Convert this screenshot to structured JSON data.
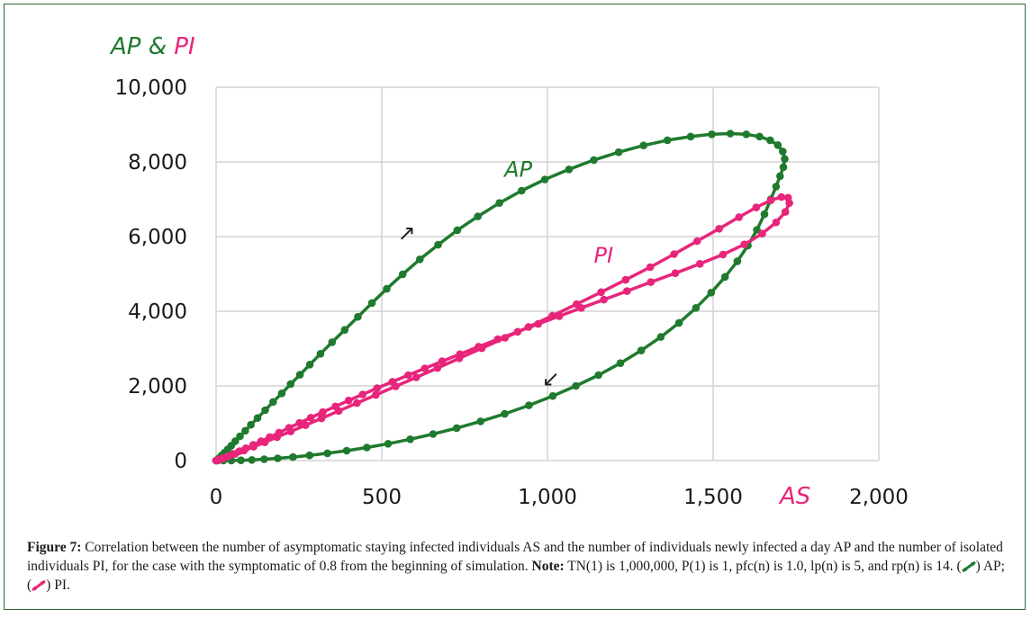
{
  "chart_data": {
    "type": "scatter",
    "title": "",
    "y_axis_title": {
      "parts": [
        {
          "text": "AP",
          "color": "#1f7a2e"
        },
        {
          "text": " & ",
          "color": "#1f7a2e"
        },
        {
          "text": "PI",
          "color": "#e8257a"
        }
      ]
    },
    "x_axis_title": {
      "text": "AS",
      "color": "#e8257a"
    },
    "xlim": [
      0,
      2000
    ],
    "ylim": [
      0,
      10000
    ],
    "x_ticks": [
      {
        "value": 0,
        "label": "0"
      },
      {
        "value": 500,
        "label": "500"
      },
      {
        "value": 1000,
        "label": "1,000"
      },
      {
        "value": 1500,
        "label": "1,500"
      },
      {
        "value": 2000,
        "label": "2,000"
      }
    ],
    "y_ticks": [
      {
        "value": 0,
        "label": "0"
      },
      {
        "value": 2000,
        "label": "2,000"
      },
      {
        "value": 4000,
        "label": "4,000"
      },
      {
        "value": 6000,
        "label": "6,000"
      },
      {
        "value": 8000,
        "label": "8,000"
      },
      {
        "value": 10000,
        "label": "10,000"
      }
    ],
    "grid": true,
    "series": [
      {
        "name": "AP",
        "color": "#1f7a2e",
        "points": [
          [
            0,
            0
          ],
          [
            8,
            60
          ],
          [
            16,
            130
          ],
          [
            25,
            210
          ],
          [
            35,
            300
          ],
          [
            46,
            400
          ],
          [
            58,
            520
          ],
          [
            72,
            650
          ],
          [
            88,
            800
          ],
          [
            105,
            960
          ],
          [
            125,
            1140
          ],
          [
            148,
            1350
          ],
          [
            172,
            1570
          ],
          [
            198,
            1800
          ],
          [
            225,
            2050
          ],
          [
            253,
            2300
          ],
          [
            283,
            2570
          ],
          [
            315,
            2860
          ],
          [
            350,
            3170
          ],
          [
            388,
            3500
          ],
          [
            428,
            3850
          ],
          [
            470,
            4220
          ],
          [
            515,
            4600
          ],
          [
            563,
            4990
          ],
          [
            615,
            5390
          ],
          [
            670,
            5780
          ],
          [
            728,
            6170
          ],
          [
            790,
            6540
          ],
          [
            855,
            6900
          ],
          [
            922,
            7230
          ],
          [
            992,
            7530
          ],
          [
            1065,
            7800
          ],
          [
            1140,
            8050
          ],
          [
            1215,
            8260
          ],
          [
            1290,
            8440
          ],
          [
            1362,
            8580
          ],
          [
            1432,
            8680
          ],
          [
            1496,
            8740
          ],
          [
            1552,
            8760
          ],
          [
            1600,
            8740
          ],
          [
            1640,
            8680
          ],
          [
            1672,
            8580
          ],
          [
            1695,
            8450
          ],
          [
            1710,
            8280
          ],
          [
            1716,
            8080
          ],
          [
            1712,
            7860
          ],
          [
            1702,
            7620
          ],
          [
            1690,
            7340
          ],
          [
            1674,
            7000
          ],
          [
            1655,
            6600
          ],
          [
            1632,
            6180
          ],
          [
            1605,
            5760
          ],
          [
            1573,
            5340
          ],
          [
            1536,
            4920
          ],
          [
            1494,
            4500
          ],
          [
            1448,
            4090
          ],
          [
            1397,
            3690
          ],
          [
            1342,
            3310
          ],
          [
            1283,
            2950
          ],
          [
            1220,
            2610
          ],
          [
            1154,
            2290
          ],
          [
            1086,
            2000
          ],
          [
            1016,
            1730
          ],
          [
            944,
            1480
          ],
          [
            871,
            1250
          ],
          [
            798,
            1050
          ],
          [
            726,
            870
          ],
          [
            655,
            710
          ],
          [
            586,
            570
          ],
          [
            519,
            450
          ],
          [
            455,
            350
          ],
          [
            394,
            265
          ],
          [
            336,
            195
          ],
          [
            282,
            140
          ],
          [
            232,
            95
          ],
          [
            186,
            60
          ],
          [
            145,
            35
          ],
          [
            108,
            18
          ],
          [
            75,
            8
          ],
          [
            46,
            3
          ],
          [
            22,
            1
          ],
          [
            5,
            0
          ]
        ]
      },
      {
        "name": "PI",
        "color": "#e8257a",
        "points": [
          [
            0,
            0
          ],
          [
            10,
            30
          ],
          [
            22,
            70
          ],
          [
            36,
            120
          ],
          [
            52,
            180
          ],
          [
            70,
            250
          ],
          [
            90,
            330
          ],
          [
            112,
            420
          ],
          [
            136,
            520
          ],
          [
            162,
            630
          ],
          [
            190,
            750
          ],
          [
            220,
            880
          ],
          [
            252,
            1010
          ],
          [
            286,
            1150
          ],
          [
            322,
            1300
          ],
          [
            360,
            1450
          ],
          [
            400,
            1610
          ],
          [
            442,
            1770
          ],
          [
            486,
            1940
          ],
          [
            532,
            2110
          ],
          [
            580,
            2290
          ],
          [
            630,
            2470
          ],
          [
            682,
            2660
          ],
          [
            736,
            2850
          ],
          [
            792,
            3050
          ],
          [
            850,
            3250
          ],
          [
            910,
            3450
          ],
          [
            972,
            3660
          ],
          [
            1036,
            3870
          ],
          [
            1102,
            4090
          ],
          [
            1170,
            4310
          ],
          [
            1240,
            4540
          ],
          [
            1312,
            4780
          ],
          [
            1386,
            5020
          ],
          [
            1460,
            5270
          ],
          [
            1530,
            5520
          ],
          [
            1594,
            5790
          ],
          [
            1648,
            6080
          ],
          [
            1690,
            6380
          ],
          [
            1718,
            6660
          ],
          [
            1730,
            6900
          ],
          [
            1726,
            7040
          ],
          [
            1706,
            7060
          ],
          [
            1674,
            6970
          ],
          [
            1630,
            6780
          ],
          [
            1578,
            6520
          ],
          [
            1518,
            6210
          ],
          [
            1452,
            5880
          ],
          [
            1382,
            5530
          ],
          [
            1310,
            5180
          ],
          [
            1236,
            4840
          ],
          [
            1162,
            4510
          ],
          [
            1088,
            4190
          ],
          [
            1015,
            3880
          ],
          [
            943,
            3580
          ],
          [
            872,
            3290
          ],
          [
            802,
            3010
          ],
          [
            734,
            2740
          ],
          [
            668,
            2480
          ],
          [
            604,
            2230
          ],
          [
            542,
            1990
          ],
          [
            482,
            1760
          ],
          [
            425,
            1540
          ],
          [
            370,
            1330
          ],
          [
            318,
            1130
          ],
          [
            270,
            950
          ],
          [
            225,
            780
          ],
          [
            184,
            630
          ],
          [
            147,
            490
          ],
          [
            113,
            370
          ],
          [
            84,
            270
          ],
          [
            58,
            180
          ],
          [
            37,
            110
          ],
          [
            20,
            55
          ],
          [
            7,
            18
          ],
          [
            0,
            0
          ]
        ]
      }
    ],
    "annotations": [
      {
        "text": "AP",
        "color": "#1f7a2e",
        "x": 870,
        "y": 7600
      },
      {
        "text": "PI",
        "color": "#e8257a",
        "x": 1140,
        "y": 5300
      }
    ],
    "direction_arrows": [
      {
        "glyph": "↗",
        "x": 575,
        "y": 5900
      },
      {
        "glyph": "↙",
        "x": 1010,
        "y": 2000
      }
    ]
  },
  "caption": {
    "figure_label": "Figure 7:",
    "text": " Correlation between the number of asymptomatic staying infected individuals AS and the number of individuals newly infected a day AP and the number of isolated individuals PI, for the case with the symptomatic of 0.8 from the beginning of simulation. ",
    "note_label": "Note:",
    "note_text": " TN(1) is 1,000,000, P(1) is 1, pfc(n) is 1.0, lp(n) is 5, and rp(n) is 14. (",
    "legend_ap": ") AP; (",
    "legend_pi": ") PI."
  }
}
